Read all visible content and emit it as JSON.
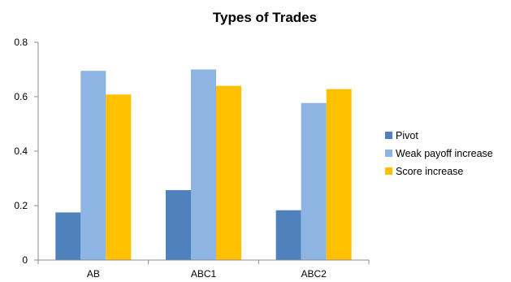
{
  "chart_data": {
    "type": "bar",
    "title": "Types of Trades",
    "xlabel": "",
    "ylabel": "",
    "categories": [
      "AB",
      "ABC1",
      "ABC2"
    ],
    "ylim": [
      0,
      0.8
    ],
    "yticks": [
      "0",
      "0.2",
      "0.4",
      "0.6",
      "0.8"
    ],
    "grid": false,
    "legend_position": "right",
    "series": [
      {
        "name": "Pivot",
        "color": "#4f81bd",
        "values": [
          0.175,
          0.257,
          0.183
        ]
      },
      {
        "name": "Weak payoff increase",
        "color": "#8eb4e3",
        "values": [
          0.695,
          0.7,
          0.577
        ]
      },
      {
        "name": "Score increase",
        "color": "#ffc000",
        "values": [
          0.608,
          0.64,
          0.628
        ]
      }
    ]
  }
}
